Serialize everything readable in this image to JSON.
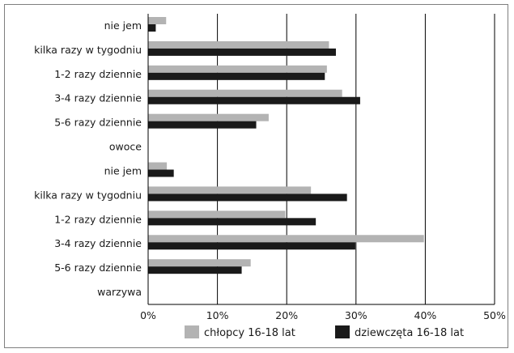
{
  "chart_data": {
    "type": "bar",
    "orientation": "horizontal",
    "title": "",
    "xlabel": "",
    "ylabel": "",
    "categories": [
      "nie jem",
      "kilka razy w tygodniu",
      "1-2 razy dziennie",
      "3-4 razy dziennie",
      "5-6 razy dziennie",
      "owoce",
      "nie jem",
      "kilka razy w tygodniu",
      "1-2 razy dziennie",
      "3-4 razy dziennie",
      "5-6 razy dziennie",
      "warzywa"
    ],
    "series": [
      {
        "name": "chłopcy 16-18 lat",
        "color": "#b3b3b3",
        "values": [
          2.6,
          26.1,
          25.8,
          28.0,
          17.4,
          null,
          2.7,
          23.5,
          19.8,
          39.8,
          14.8,
          null
        ]
      },
      {
        "name": "dziewczęta 16-18 lat",
        "color": "#1a1a1a",
        "values": [
          1.1,
          27.1,
          25.5,
          30.6,
          15.6,
          null,
          3.7,
          28.7,
          24.2,
          29.9,
          13.5,
          null
        ]
      }
    ],
    "xlim": [
      0,
      50
    ],
    "xticks": [
      "0%",
      "10%",
      "20%",
      "30%",
      "40%",
      "50%"
    ],
    "grid": "vertical",
    "legend_position": "bottom"
  }
}
